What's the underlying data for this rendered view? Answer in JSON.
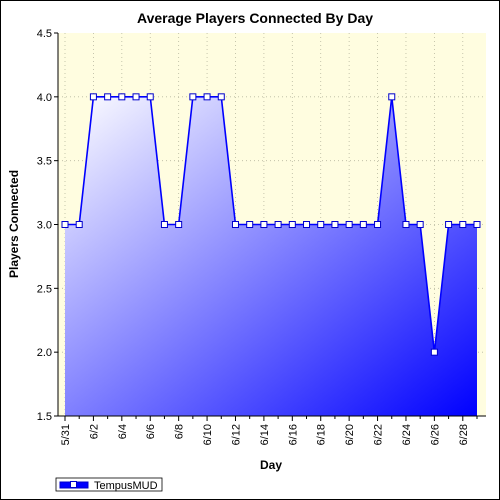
{
  "chart_data": {
    "type": "area",
    "title": "Average Players Connected By Day",
    "xlabel": "Day",
    "ylabel": "Players Connected",
    "ylim": [
      1.5,
      4.5
    ],
    "yticks": [
      "1.5",
      "2.0",
      "2.5",
      "3.0",
      "3.5",
      "4.0",
      "4.5"
    ],
    "x": [
      "5/31",
      "6/1",
      "6/2",
      "6/3",
      "6/4",
      "6/5",
      "6/6",
      "6/7",
      "6/8",
      "6/9",
      "6/10",
      "6/11",
      "6/12",
      "6/13",
      "6/14",
      "6/15",
      "6/16",
      "6/17",
      "6/18",
      "6/19",
      "6/20",
      "6/21",
      "6/22",
      "6/23",
      "6/24",
      "6/25",
      "6/26",
      "6/27",
      "6/28",
      "6/29"
    ],
    "xtick_labels": [
      "5/31",
      "6/2",
      "6/4",
      "6/6",
      "6/8",
      "6/10",
      "6/12",
      "6/14",
      "6/16",
      "6/18",
      "6/20",
      "6/22",
      "6/24",
      "6/26",
      "6/28"
    ],
    "series": [
      {
        "name": "TempusMUD",
        "values": [
          3,
          3,
          4,
          4,
          4,
          4,
          4,
          3,
          3,
          4,
          4,
          4,
          3,
          3,
          3,
          3,
          3,
          3,
          3,
          3,
          3,
          3,
          3,
          4,
          3,
          3,
          2,
          3,
          3,
          3
        ]
      }
    ],
    "grid": true,
    "legend_position": "bottom-left",
    "colors": {
      "plot_bg": "#fffde0",
      "line": "#0000ff",
      "fill_light": "#ffffff",
      "fill_dark": "#0000ff",
      "marker_fill": "#ffffff"
    }
  }
}
